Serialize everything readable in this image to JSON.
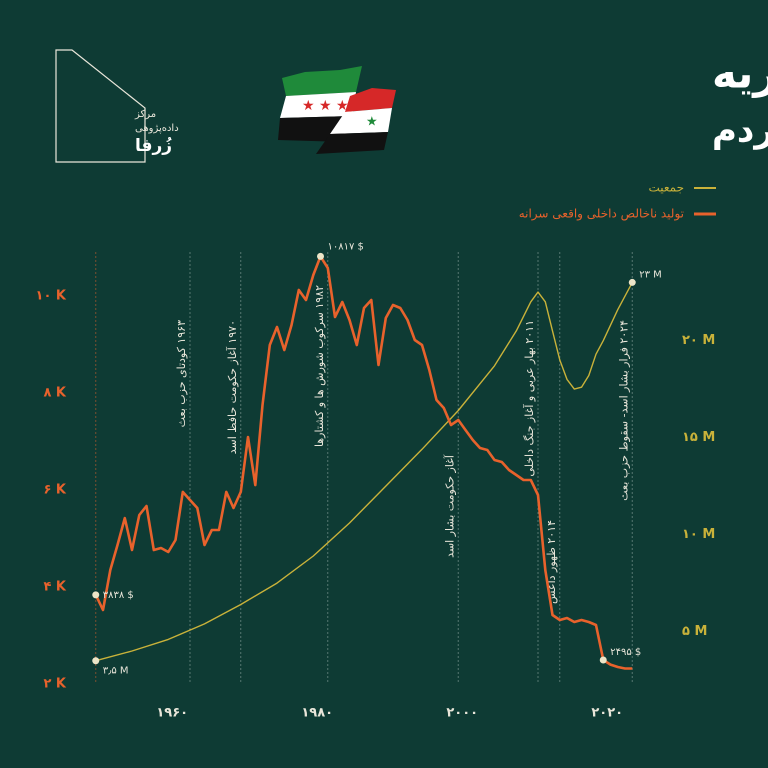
{
  "logo": {
    "line1": "مرکز",
    "line2": "داده‌پژوهی",
    "line3": "زُرفا"
  },
  "chart_data": {
    "type": "line",
    "title": "داستان سوریه",
    "subtitle": "أسدها و جیب مردم",
    "xlim": [
      1948,
      2026
    ],
    "xticks": [
      {
        "value": 1960,
        "label": "۱۹۶۰"
      },
      {
        "value": 1980,
        "label": "۱۹۸۰"
      },
      {
        "value": 2000,
        "label": "۲۰۰۰"
      },
      {
        "value": 2020,
        "label": "۲۰۲۰"
      }
    ],
    "ylim": [
      2000,
      11000
    ],
    "yticks": [
      {
        "value": 2000,
        "label": "۲ K"
      },
      {
        "value": 4000,
        "label": "۴ K"
      },
      {
        "value": 6000,
        "label": "۶ K"
      },
      {
        "value": 8000,
        "label": "۸ K"
      },
      {
        "value": 10000,
        "label": "۱۰ K"
      }
    ],
    "y2lim": [
      2.3,
      24.8
    ],
    "y2ticks": [
      {
        "value": 5,
        "label": "۵ M"
      },
      {
        "value": 10,
        "label": "۱۰ M"
      },
      {
        "value": 15,
        "label": "۱۵ M"
      },
      {
        "value": 20,
        "label": "۲۰ M"
      }
    ],
    "legend": "top-right",
    "series": [
      {
        "name": "جمعیت",
        "color": "#c9b23a",
        "axis": "y2",
        "x": [
          1950,
          1955,
          1960,
          1965,
          1970,
          1975,
          1980,
          1985,
          1990,
          1995,
          2000,
          2005,
          2008,
          2010,
          2011,
          2012,
          2013,
          2014,
          2015,
          2016,
          2017,
          2018,
          2019,
          2020,
          2022,
          2024
        ],
        "values": [
          3.5,
          4.0,
          4.6,
          5.4,
          6.4,
          7.5,
          8.9,
          10.6,
          12.5,
          14.4,
          16.4,
          18.7,
          20.5,
          22.0,
          22.5,
          22.0,
          20.5,
          19.0,
          18.0,
          17.5,
          17.6,
          18.2,
          19.3,
          20.0,
          21.6,
          23
        ],
        "value_labels": [
          "۳٫۵ M",
          null,
          null,
          null,
          null,
          null,
          null,
          null,
          null,
          null,
          null,
          null,
          null,
          null,
          null,
          null,
          null,
          null,
          null,
          null,
          null,
          null,
          null,
          null,
          null,
          "۲۳ M"
        ]
      },
      {
        "name": "تولید ناخالص داخلی واقعی سرانه",
        "color": "#e8622c",
        "x": [
          1950,
          1951,
          1952,
          1953,
          1954,
          1955,
          1956,
          1957,
          1958,
          1959,
          1960,
          1961,
          1962,
          1963,
          1964,
          1965,
          1966,
          1967,
          1968,
          1969,
          1970,
          1971,
          1972,
          1973,
          1974,
          1975,
          1976,
          1977,
          1978,
          1979,
          1980,
          1981,
          1982,
          1983,
          1984,
          1985,
          1986,
          1987,
          1988,
          1989,
          1990,
          1991,
          1992,
          1993,
          1994,
          1995,
          1996,
          1997,
          1998,
          1999,
          2000,
          2001,
          2002,
          2003,
          2004,
          2005,
          2006,
          2007,
          2008,
          2009,
          2010,
          2011,
          2012,
          2013,
          2014,
          2015,
          2016,
          2017,
          2018,
          2019,
          2020,
          2021,
          2022,
          2023,
          2024
        ],
        "values": [
          3838,
          3526,
          4350,
          4866,
          5420,
          4763,
          5485,
          5670,
          4763,
          4804,
          4722,
          4970,
          5960,
          5794,
          5629,
          4866,
          5175,
          5175,
          5960,
          5629,
          5960,
          7093,
          6100,
          7750,
          8990,
          9360,
          8887,
          9400,
          10124,
          9918,
          10433,
          10817,
          10577,
          9567,
          9876,
          9505,
          8990,
          9753,
          9918,
          8577,
          9546,
          9814,
          9753,
          9505,
          9093,
          8990,
          8474,
          7855,
          7690,
          7340,
          7443,
          7237,
          7031,
          6866,
          6825,
          6619,
          6577,
          6412,
          6309,
          6206,
          6206,
          5897,
          4350,
          3423,
          3320,
          3361,
          3278,
          3320,
          3278,
          3216,
          2495,
          2400,
          2350,
          2320,
          2320
        ],
        "value_labels": [
          "۳۸۳۸ $",
          null,
          null,
          null,
          null,
          null,
          null,
          null,
          null,
          null,
          null,
          null,
          null,
          null,
          null,
          null,
          null,
          null,
          null,
          null,
          null,
          null,
          null,
          null,
          null,
          null,
          null,
          null,
          null,
          null,
          null,
          "۱۰۸۱۷ $",
          null,
          null,
          null,
          null,
          null,
          null,
          null,
          null,
          null,
          null,
          null,
          null,
          null,
          null,
          null,
          null,
          null,
          null,
          null,
          null,
          null,
          null,
          null,
          null,
          null,
          null,
          null,
          null,
          null,
          null,
          null,
          null,
          null,
          null,
          null,
          null,
          null,
          null,
          "۲۴۹۵ $",
          null,
          null,
          null,
          null
        ]
      }
    ],
    "annotations": [
      {
        "year": 1963,
        "text": "۱۹۶۳ کودتای حزب بعث"
      },
      {
        "year": 1970,
        "text": "۱۹۷۰ آغاز حکومت حافظ اسد"
      },
      {
        "year": 1982,
        "text": "۱۹۸۲ سرکوب شورش ها و کشتارها"
      },
      {
        "year": 2000,
        "text": "آغاز حکومت بشار اسد"
      },
      {
        "year": 2011,
        "text": "۲۰۱۱ بهار عربی و آغاز جنگ داخلی"
      },
      {
        "year": 2014,
        "text": "۲۰۱۴ ظهور داعش"
      },
      {
        "year": 2024,
        "text": "۲۰۲۴ فرار بشار اسد- سقوط حزب بعث"
      }
    ]
  }
}
